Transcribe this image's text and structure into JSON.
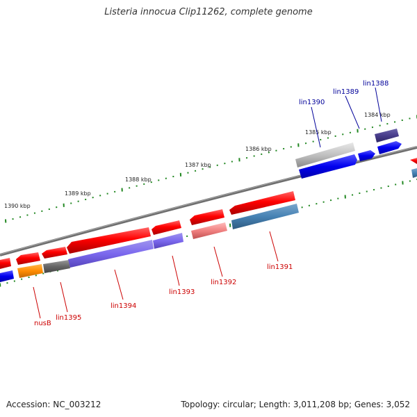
{
  "title": "Listeria innocua Clip11262, complete genome",
  "footer": {
    "accession": "Accession: NC_003212",
    "stats": "Topology: circular; Length: 3,011,208 bp; Genes: 3,052"
  },
  "scale_labels": [
    "1384 kbp",
    "1385 kbp",
    "1386 kbp",
    "1387 kbp",
    "1388 kbp",
    "1389 kbp",
    "1390 kbp"
  ],
  "genes_top": [
    {
      "name": "lin1390",
      "color": "#000099"
    },
    {
      "name": "lin1389",
      "color": "#000099"
    },
    {
      "name": "lin1388",
      "color": "#000099"
    }
  ],
  "genes_bottom": [
    {
      "name": "nusB",
      "color": "#cc0000"
    },
    {
      "name": "lin1395",
      "color": "#cc0000"
    },
    {
      "name": "lin1394",
      "color": "#cc0000"
    },
    {
      "name": "lin1393",
      "color": "#cc0000"
    },
    {
      "name": "lin1392",
      "color": "#cc0000"
    },
    {
      "name": "lin1391",
      "color": "#cc0000"
    }
  ],
  "colors": {
    "backbone": "#777777",
    "forward_cds": "#0000ee",
    "reverse_cds": "#ee0000",
    "tick": "#228822"
  }
}
